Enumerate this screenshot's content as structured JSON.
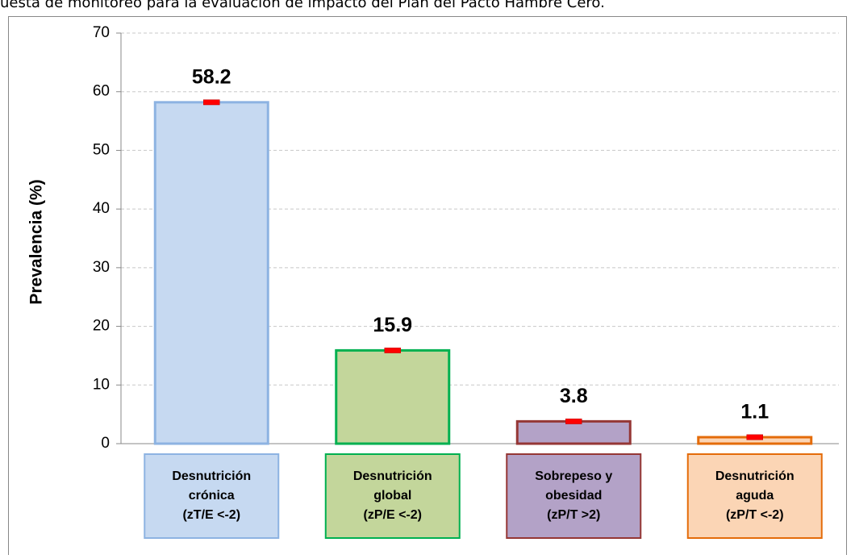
{
  "chart_data": {
    "type": "bar",
    "subtitle": "uesta de monitoreo para la evaluación de impacto del Plan del Pacto Hambre Cero.",
    "ylabel": "Prevalencia (%)",
    "categories": [
      [
        "Desnutrición",
        "crónica",
        "(zT/E <-2)"
      ],
      [
        "Desnutrición",
        "global",
        "(zP/E <-2)"
      ],
      [
        "Sobrepeso y",
        "obesidad",
        "(zP/T >2)"
      ],
      [
        "Desnutrición",
        "aguda",
        "(zP/T <-2)"
      ]
    ],
    "values": [
      58.2,
      15.9,
      3.8,
      1.1
    ],
    "errors": [
      0.3,
      0.3,
      0.3,
      0.3
    ],
    "colors": [
      "#c6d9f1",
      "#c3d69b",
      "#b3a2c7",
      "#fbd5b5"
    ],
    "edge_colors": [
      "#8db3e2",
      "#00b050",
      "#953735",
      "#e46c0a"
    ],
    "error_color": "#ff0000",
    "ylim": [
      0,
      70
    ],
    "yticks": [
      0,
      10,
      20,
      30,
      40,
      50,
      60,
      70
    ],
    "grid": true
  }
}
